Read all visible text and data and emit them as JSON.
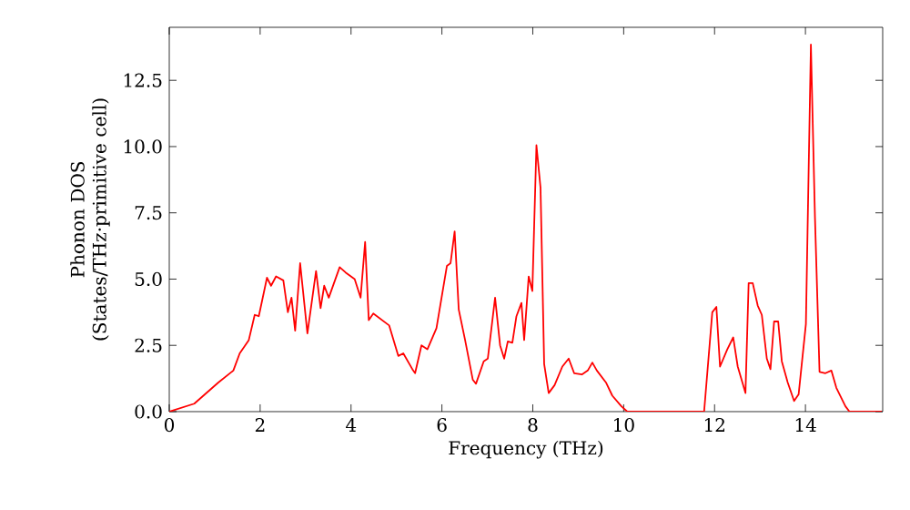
{
  "chart_data": {
    "type": "line",
    "xlabel": "Frequency (THz)",
    "ylabel": "Phonon DOS\n(States/THz·primitive cell)",
    "xlim": [
      0,
      15.7
    ],
    "ylim": [
      0,
      14.5
    ],
    "xticks": [
      0,
      2,
      4,
      6,
      8,
      10,
      12,
      14
    ],
    "yticks": [
      {
        "value": 0,
        "label": "0.0"
      },
      {
        "value": 2.5,
        "label": "2.5"
      },
      {
        "value": 5,
        "label": "5.0"
      },
      {
        "value": 7.5,
        "label": "7.5"
      },
      {
        "value": 10,
        "label": "10.0"
      },
      {
        "value": 12.5,
        "label": "12.5"
      }
    ],
    "grid": false,
    "marker": "none",
    "line_style": "solid",
    "series": [
      {
        "color": "#ff0000",
        "x": [
          0,
          0.55,
          1.08,
          1.41,
          1.55,
          1.75,
          1.88,
          1.97,
          2.15,
          2.24,
          2.35,
          2.51,
          2.61,
          2.69,
          2.77,
          2.88,
          3.04,
          3.23,
          3.33,
          3.41,
          3.51,
          3.75,
          3.88,
          4.08,
          4.21,
          4.31,
          4.39,
          4.49,
          4.84,
          5.04,
          5.15,
          5.35,
          5.41,
          5.55,
          5.68,
          5.88,
          6.11,
          6.19,
          6.28,
          6.37,
          6.51,
          6.68,
          6.75,
          6.92,
          7.01,
          7.17,
          7.28,
          7.37,
          7.45,
          7.55,
          7.64,
          7.75,
          7.81,
          7.91,
          7.99,
          8.08,
          8.17,
          8.25,
          8.35,
          8.48,
          8.65,
          8.79,
          8.91,
          9.08,
          9.21,
          9.31,
          9.41,
          9.61,
          9.75,
          9.95,
          10.08,
          11.77,
          11.95,
          12.04,
          12.12,
          12.28,
          12.41,
          12.51,
          12.68,
          12.75,
          12.84,
          12.95,
          13.04,
          13.15,
          13.23,
          13.31,
          13.4,
          13.48,
          13.61,
          13.75,
          13.85,
          14.01,
          14.12,
          14.21,
          14.31,
          14.44,
          14.57,
          14.68,
          14.88,
          14.97,
          15.68
        ],
        "values": [
          0,
          0.3,
          1.1,
          1.55,
          2.2,
          2.7,
          3.65,
          3.6,
          5.05,
          4.75,
          5.1,
          4.95,
          3.75,
          4.3,
          3.05,
          5.6,
          2.95,
          5.3,
          3.9,
          4.75,
          4.3,
          5.45,
          5.25,
          5.0,
          4.3,
          6.4,
          3.45,
          3.7,
          3.25,
          2.1,
          2.2,
          1.6,
          1.45,
          2.5,
          2.35,
          3.15,
          5.5,
          5.6,
          6.8,
          3.85,
          2.7,
          1.2,
          1.05,
          1.9,
          2.0,
          4.3,
          2.5,
          2.0,
          2.65,
          2.6,
          3.6,
          4.1,
          2.7,
          5.1,
          4.55,
          10.05,
          8.45,
          1.8,
          0.7,
          1.0,
          1.7,
          2.0,
          1.45,
          1.4,
          1.55,
          1.85,
          1.55,
          1.1,
          0.6,
          0.2,
          0,
          0,
          3.75,
          3.95,
          1.7,
          2.35,
          2.8,
          1.7,
          0.7,
          4.85,
          4.85,
          4.0,
          3.65,
          2.0,
          1.6,
          3.4,
          3.4,
          1.9,
          1.1,
          0.4,
          0.65,
          3.3,
          13.85,
          7.3,
          1.5,
          1.45,
          1.55,
          0.9,
          0.2,
          0,
          0
        ]
      }
    ]
  }
}
